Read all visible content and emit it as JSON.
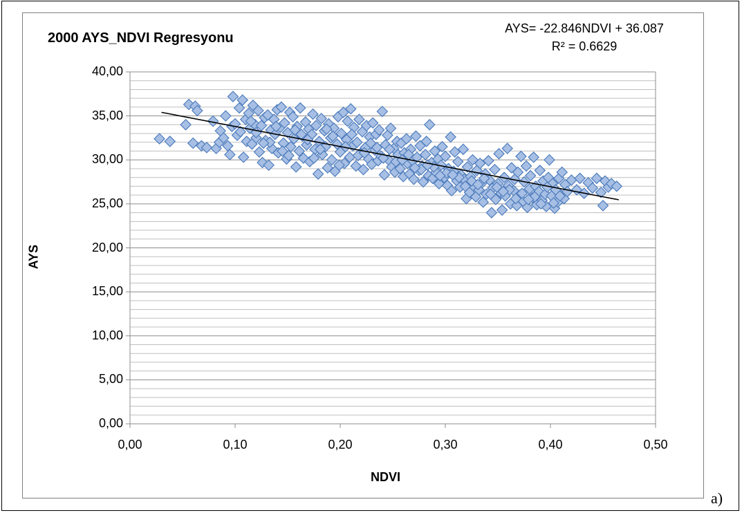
{
  "chart_data": {
    "type": "scatter",
    "title": "2000 AYS_NDVI Regresyonu",
    "xlabel": "NDVI",
    "ylabel": "AYS",
    "xlim": [
      0,
      0.5
    ],
    "ylim": [
      0,
      40
    ],
    "x_ticks": [
      "0,00",
      "0,10",
      "0,20",
      "0,30",
      "0,40",
      "0,50"
    ],
    "y_ticks": [
      "0,00",
      "5,00",
      "10,00",
      "15,00",
      "20,00",
      "25,00",
      "30,00",
      "35,00",
      "40,00"
    ],
    "grid": true,
    "annotations": {
      "equation": "AYS= -22.846NDVI + 36.087",
      "r_squared": "R² = 0.6629"
    },
    "trendline": {
      "slope": -22.846,
      "intercept": 36.087,
      "x_range": [
        0.03,
        0.465
      ]
    },
    "marker": {
      "shape": "diamond",
      "fill": "#a7bfe4",
      "stroke": "#4f7dbd"
    },
    "series": [
      {
        "points": [
          [
            0.028,
            32.4
          ],
          [
            0.038,
            32.1
          ],
          [
            0.053,
            34.0
          ],
          [
            0.056,
            36.3
          ],
          [
            0.06,
            31.9
          ],
          [
            0.062,
            36.1
          ],
          [
            0.064,
            35.6
          ],
          [
            0.068,
            31.6
          ],
          [
            0.073,
            31.4
          ],
          [
            0.079,
            34.4
          ],
          [
            0.082,
            31.3
          ],
          [
            0.085,
            32.0
          ],
          [
            0.086,
            33.3
          ],
          [
            0.089,
            32.5
          ],
          [
            0.091,
            35.0
          ],
          [
            0.093,
            31.6
          ],
          [
            0.095,
            30.6
          ],
          [
            0.097,
            33.8
          ],
          [
            0.098,
            37.2
          ],
          [
            0.1,
            34.1
          ],
          [
            0.102,
            32.8
          ],
          [
            0.104,
            35.9
          ],
          [
            0.105,
            33.2
          ],
          [
            0.107,
            36.8
          ],
          [
            0.108,
            30.3
          ],
          [
            0.11,
            34.6
          ],
          [
            0.111,
            32.1
          ],
          [
            0.113,
            35.3
          ],
          [
            0.114,
            33.6
          ],
          [
            0.116,
            31.8
          ],
          [
            0.117,
            36.2
          ],
          [
            0.119,
            34.0
          ],
          [
            0.12,
            32.5
          ],
          [
            0.122,
            35.6
          ],
          [
            0.123,
            30.9
          ],
          [
            0.125,
            33.9
          ],
          [
            0.126,
            29.7
          ],
          [
            0.128,
            34.8
          ],
          [
            0.129,
            32.2
          ],
          [
            0.131,
            35.1
          ],
          [
            0.132,
            29.4
          ],
          [
            0.134,
            33.4
          ],
          [
            0.135,
            31.3
          ],
          [
            0.137,
            34.6
          ],
          [
            0.138,
            32.9
          ],
          [
            0.14,
            35.7
          ],
          [
            0.141,
            30.8
          ],
          [
            0.143,
            33.7
          ],
          [
            0.144,
            36.0
          ],
          [
            0.146,
            31.9
          ],
          [
            0.147,
            34.2
          ],
          [
            0.149,
            30.1
          ],
          [
            0.15,
            33.1
          ],
          [
            0.152,
            35.4
          ],
          [
            0.153,
            31.5
          ],
          [
            0.155,
            34.9
          ],
          [
            0.156,
            32.4
          ],
          [
            0.158,
            29.2
          ],
          [
            0.159,
            33.8
          ],
          [
            0.161,
            31.0
          ],
          [
            0.162,
            35.9
          ],
          [
            0.164,
            32.7
          ],
          [
            0.165,
            30.2
          ],
          [
            0.167,
            34.3
          ],
          [
            0.168,
            31.7
          ],
          [
            0.17,
            33.5
          ],
          [
            0.171,
            29.8
          ],
          [
            0.173,
            32.9
          ],
          [
            0.174,
            35.2
          ],
          [
            0.176,
            31.2
          ],
          [
            0.177,
            33.9
          ],
          [
            0.179,
            28.4
          ],
          [
            0.18,
            32.1
          ],
          [
            0.182,
            34.7
          ],
          [
            0.183,
            30.6
          ],
          [
            0.185,
            33.3
          ],
          [
            0.186,
            31.5
          ],
          [
            0.188,
            29.1
          ],
          [
            0.189,
            34.1
          ],
          [
            0.191,
            32.5
          ],
          [
            0.192,
            30.0
          ],
          [
            0.194,
            33.6
          ],
          [
            0.195,
            28.7
          ],
          [
            0.197,
            31.8
          ],
          [
            0.198,
            34.9
          ],
          [
            0.2,
            30.9
          ],
          [
            0.201,
            33.0
          ],
          [
            0.203,
            35.4
          ],
          [
            0.204,
            29.6
          ],
          [
            0.206,
            32.3
          ],
          [
            0.207,
            34.4
          ],
          [
            0.209,
            30.3
          ],
          [
            0.21,
            35.8
          ],
          [
            0.212,
            31.6
          ],
          [
            0.213,
            33.7
          ],
          [
            0.215,
            29.3
          ],
          [
            0.216,
            32.0
          ],
          [
            0.218,
            34.6
          ],
          [
            0.219,
            30.7
          ],
          [
            0.221,
            33.2
          ],
          [
            0.222,
            28.9
          ],
          [
            0.224,
            31.4
          ],
          [
            0.225,
            33.9
          ],
          [
            0.227,
            30.1
          ],
          [
            0.228,
            32.6
          ],
          [
            0.23,
            29.5
          ],
          [
            0.231,
            34.2
          ],
          [
            0.233,
            31.1
          ],
          [
            0.234,
            32.9
          ],
          [
            0.236,
            29.9
          ],
          [
            0.237,
            33.4
          ],
          [
            0.239,
            30.4
          ],
          [
            0.24,
            35.5
          ],
          [
            0.242,
            28.3
          ],
          [
            0.243,
            31.7
          ],
          [
            0.245,
            32.8
          ],
          [
            0.246,
            30.0
          ],
          [
            0.248,
            33.6
          ],
          [
            0.249,
            29.2
          ],
          [
            0.251,
            31.3
          ],
          [
            0.252,
            28.6
          ],
          [
            0.254,
            32.1
          ],
          [
            0.255,
            30.6
          ],
          [
            0.257,
            29.0
          ],
          [
            0.258,
            31.9
          ],
          [
            0.26,
            28.1
          ],
          [
            0.261,
            30.8
          ],
          [
            0.263,
            32.4
          ],
          [
            0.264,
            29.6
          ],
          [
            0.266,
            28.4
          ],
          [
            0.267,
            31.2
          ],
          [
            0.269,
            29.9
          ],
          [
            0.27,
            27.8
          ],
          [
            0.272,
            32.7
          ],
          [
            0.273,
            30.3
          ],
          [
            0.275,
            28.8
          ],
          [
            0.276,
            31.6
          ],
          [
            0.278,
            29.3
          ],
          [
            0.279,
            27.5
          ],
          [
            0.281,
            30.6
          ],
          [
            0.282,
            32.1
          ],
          [
            0.284,
            28.2
          ],
          [
            0.285,
            34.0
          ],
          [
            0.287,
            29.7
          ],
          [
            0.288,
            27.9
          ],
          [
            0.29,
            31.0
          ],
          [
            0.291,
            28.6
          ],
          [
            0.293,
            30.1
          ],
          [
            0.294,
            27.3
          ],
          [
            0.296,
            29.4
          ],
          [
            0.297,
            31.5
          ],
          [
            0.299,
            28.0
          ],
          [
            0.3,
            30.4
          ],
          [
            0.302,
            27.1
          ],
          [
            0.303,
            29.0
          ],
          [
            0.305,
            32.6
          ],
          [
            0.306,
            26.5
          ],
          [
            0.308,
            28.7
          ],
          [
            0.309,
            30.9
          ],
          [
            0.311,
            27.6
          ],
          [
            0.312,
            29.8
          ],
          [
            0.314,
            26.9
          ],
          [
            0.315,
            28.3
          ],
          [
            0.317,
            31.2
          ],
          [
            0.318,
            27.8
          ],
          [
            0.32,
            25.6
          ],
          [
            0.321,
            29.2
          ],
          [
            0.323,
            26.3
          ],
          [
            0.324,
            28.1
          ],
          [
            0.326,
            30.0
          ],
          [
            0.327,
            27.0
          ],
          [
            0.329,
            25.8
          ],
          [
            0.33,
            28.8
          ],
          [
            0.332,
            26.6
          ],
          [
            0.333,
            29.6
          ],
          [
            0.335,
            27.4
          ],
          [
            0.336,
            25.2
          ],
          [
            0.338,
            28.4
          ],
          [
            0.339,
            26.1
          ],
          [
            0.341,
            29.9
          ],
          [
            0.342,
            27.7
          ],
          [
            0.344,
            24.0
          ],
          [
            0.345,
            26.8
          ],
          [
            0.347,
            28.9
          ],
          [
            0.348,
            25.5
          ],
          [
            0.35,
            27.3
          ],
          [
            0.351,
            30.7
          ],
          [
            0.353,
            26.2
          ],
          [
            0.354,
            24.3
          ],
          [
            0.356,
            28.0
          ],
          [
            0.357,
            25.9
          ],
          [
            0.359,
            31.3
          ],
          [
            0.36,
            27.1
          ],
          [
            0.362,
            25.0
          ],
          [
            0.363,
            29.1
          ],
          [
            0.365,
            26.5
          ],
          [
            0.366,
            27.8
          ],
          [
            0.368,
            24.8
          ],
          [
            0.369,
            28.6
          ],
          [
            0.371,
            26.0
          ],
          [
            0.372,
            30.4
          ],
          [
            0.374,
            25.3
          ],
          [
            0.375,
            27.5
          ],
          [
            0.377,
            29.3
          ],
          [
            0.378,
            24.6
          ],
          [
            0.38,
            26.7
          ],
          [
            0.381,
            28.2
          ],
          [
            0.383,
            25.7
          ],
          [
            0.384,
            30.3
          ],
          [
            0.386,
            27.0
          ],
          [
            0.387,
            24.9
          ],
          [
            0.389,
            26.4
          ],
          [
            0.39,
            28.8
          ],
          [
            0.392,
            25.4
          ],
          [
            0.393,
            27.6
          ],
          [
            0.395,
            26.1
          ],
          [
            0.396,
            24.7
          ],
          [
            0.398,
            28.0
          ],
          [
            0.399,
            30.0
          ],
          [
            0.401,
            25.9
          ],
          [
            0.402,
            27.3
          ],
          [
            0.404,
            24.5
          ],
          [
            0.405,
            26.6
          ],
          [
            0.407,
            25.2
          ],
          [
            0.408,
            27.9
          ],
          [
            0.41,
            26.0
          ],
          [
            0.411,
            28.6
          ],
          [
            0.413,
            25.6
          ],
          [
            0.414,
            27.2
          ],
          [
            0.416,
            26.4
          ],
          [
            0.42,
            27.7
          ],
          [
            0.425,
            26.6
          ],
          [
            0.428,
            27.9
          ],
          [
            0.432,
            26.2
          ],
          [
            0.436,
            27.4
          ],
          [
            0.44,
            26.8
          ],
          [
            0.444,
            27.9
          ],
          [
            0.448,
            26.3
          ],
          [
            0.45,
            24.8
          ],
          [
            0.452,
            27.6
          ],
          [
            0.455,
            26.9
          ],
          [
            0.458,
            27.3
          ],
          [
            0.463,
            27.0
          ],
          [
            0.12,
            33.1
          ],
          [
            0.133,
            32.0
          ],
          [
            0.145,
            31.0
          ],
          [
            0.157,
            33.4
          ],
          [
            0.169,
            32.3
          ],
          [
            0.181,
            31.2
          ],
          [
            0.193,
            32.7
          ],
          [
            0.205,
            31.5
          ],
          [
            0.217,
            30.5
          ],
          [
            0.229,
            31.9
          ],
          [
            0.241,
            30.2
          ],
          [
            0.253,
            29.8
          ],
          [
            0.265,
            30.6
          ],
          [
            0.277,
            28.9
          ],
          [
            0.289,
            29.2
          ],
          [
            0.301,
            28.5
          ],
          [
            0.313,
            28.0
          ],
          [
            0.325,
            27.6
          ],
          [
            0.337,
            27.9
          ],
          [
            0.349,
            26.9
          ],
          [
            0.361,
            26.6
          ],
          [
            0.373,
            26.2
          ],
          [
            0.385,
            25.8
          ],
          [
            0.397,
            26.9
          ],
          [
            0.409,
            25.9
          ],
          [
            0.115,
            34.4
          ],
          [
            0.139,
            33.8
          ],
          [
            0.163,
            32.9
          ],
          [
            0.187,
            33.5
          ],
          [
            0.211,
            32.9
          ],
          [
            0.235,
            31.4
          ],
          [
            0.259,
            30.0
          ],
          [
            0.283,
            29.4
          ],
          [
            0.307,
            28.3
          ],
          [
            0.331,
            27.2
          ],
          [
            0.355,
            26.4
          ],
          [
            0.379,
            25.5
          ],
          [
            0.403,
            25.1
          ],
          [
            0.127,
            31.9
          ],
          [
            0.151,
            30.5
          ],
          [
            0.175,
            30.2
          ],
          [
            0.199,
            29.4
          ],
          [
            0.223,
            30.8
          ],
          [
            0.247,
            31.2
          ],
          [
            0.271,
            29.1
          ],
          [
            0.295,
            28.2
          ],
          [
            0.319,
            27.0
          ],
          [
            0.343,
            26.1
          ],
          [
            0.367,
            25.6
          ],
          [
            0.391,
            25.0
          ]
        ]
      }
    ]
  }
}
